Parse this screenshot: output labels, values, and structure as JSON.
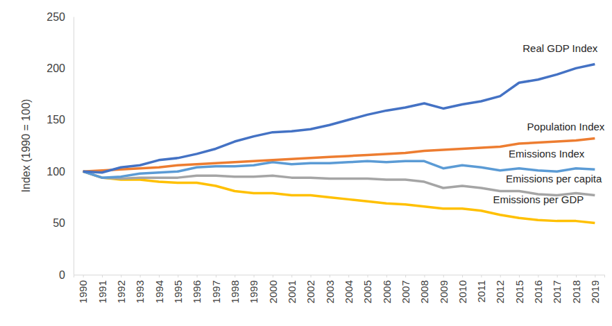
{
  "chart_data": {
    "type": "line",
    "ylabel": "Index (1990 = 100)",
    "categories": [
      "1990",
      "1991",
      "1992",
      "1993",
      "1994",
      "1995",
      "1996",
      "1997",
      "1998",
      "1999",
      "2000",
      "2001",
      "2002",
      "2003",
      "2004",
      "2005",
      "2006",
      "2007",
      "2008",
      "2009",
      "2010",
      "2011",
      "2012",
      "2015",
      "2016",
      "2017",
      "2018",
      "2019"
    ],
    "series": [
      {
        "name": "Real GDP Index",
        "color": "#4472c4",
        "values": [
          100,
          99,
          104,
          106,
          111,
          113,
          117,
          122,
          129,
          134,
          138,
          139,
          141,
          145,
          150,
          155,
          159,
          162,
          166,
          161,
          165,
          168,
          173,
          186,
          189,
          194,
          200,
          204
        ]
      },
      {
        "name": "Population Index",
        "color": "#ed7d31",
        "values": [
          100,
          101,
          102,
          103,
          104,
          106,
          107,
          108,
          109,
          110,
          111,
          112,
          113,
          114,
          115,
          116,
          117,
          118,
          120,
          121,
          122,
          123,
          124,
          127,
          128,
          129,
          130,
          132
        ]
      },
      {
        "name": "Emissions Index",
        "color": "#5b9bd5",
        "values": [
          100,
          94,
          95,
          98,
          99,
          100,
          104,
          105,
          105,
          106,
          109,
          107,
          108,
          108,
          109,
          110,
          109,
          110,
          110,
          103,
          106,
          104,
          101,
          103,
          101,
          100,
          103,
          102
        ]
      },
      {
        "name": "Emissions per capita",
        "color": "#a5a5a5",
        "values": [
          100,
          94,
          93,
          94,
          94,
          94,
          96,
          96,
          95,
          95,
          96,
          94,
          94,
          93,
          93,
          93,
          92,
          92,
          90,
          84,
          86,
          84,
          81,
          81,
          78,
          77,
          79,
          77
        ]
      },
      {
        "name": "Emissions per GDP",
        "color": "#ffc000",
        "values": [
          100,
          94,
          92,
          92,
          90,
          89,
          89,
          86,
          81,
          79,
          79,
          77,
          77,
          75,
          73,
          71,
          69,
          68,
          66,
          64,
          64,
          62,
          58,
          55,
          53,
          52,
          52,
          50
        ]
      }
    ],
    "ylim": [
      0,
      250
    ],
    "yticks": [
      0,
      50,
      100,
      150,
      200,
      250
    ],
    "grid": false
  }
}
